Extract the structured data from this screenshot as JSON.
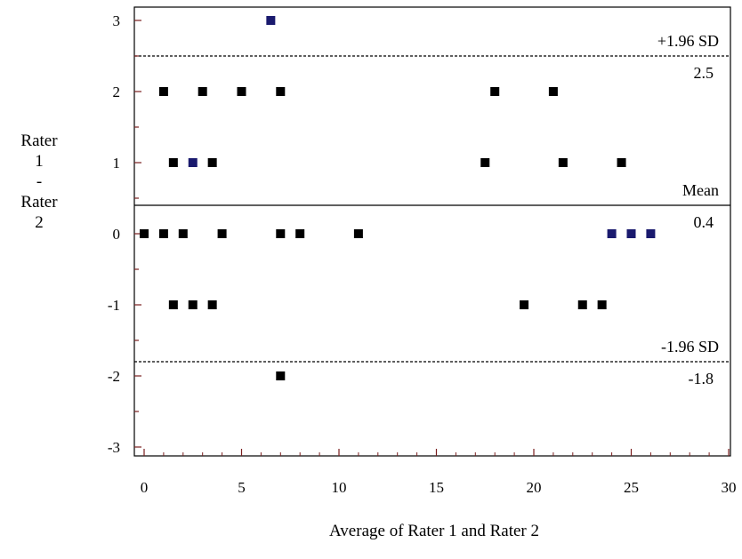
{
  "chart_data": {
    "type": "scatter",
    "title": "",
    "xlabel": "Average of Rater 1 and Rater 2",
    "ylabel_lines": [
      "Rater",
      "1",
      "-",
      "Rater",
      "2"
    ],
    "xlim": [
      0,
      30
    ],
    "ylim": [
      -3,
      3
    ],
    "xticks": [
      0,
      5,
      10,
      15,
      20,
      25,
      30
    ],
    "yticks": [
      -3,
      -2,
      -1,
      0,
      1,
      2,
      3
    ],
    "grid": false,
    "reference_lines": [
      {
        "name": "+1.96 SD",
        "value": 2.5,
        "value_label": "2.5",
        "style": "dashed"
      },
      {
        "name": "Mean",
        "value": 0.4,
        "value_label": "0.4",
        "style": "solid"
      },
      {
        "name": "-1.96 SD",
        "value": -1.8,
        "value_label": "-1.8",
        "style": "dashed"
      }
    ],
    "series": [
      {
        "color": "#000000",
        "points": [
          [
            1,
            2
          ],
          [
            3,
            2
          ],
          [
            5,
            2
          ],
          [
            7,
            2
          ],
          [
            18,
            2
          ],
          [
            21,
            2
          ],
          [
            1.5,
            1
          ],
          [
            3.5,
            1
          ],
          [
            17.5,
            1
          ],
          [
            21.5,
            1
          ],
          [
            24.5,
            1
          ],
          [
            0,
            0
          ],
          [
            1,
            0
          ],
          [
            2,
            0
          ],
          [
            4,
            0
          ],
          [
            7,
            0
          ],
          [
            8,
            0
          ],
          [
            11,
            0
          ],
          [
            1.5,
            -1
          ],
          [
            2.5,
            -1
          ],
          [
            3.5,
            -1
          ],
          [
            19.5,
            -1
          ],
          [
            22.5,
            -1
          ],
          [
            23.5,
            -1
          ],
          [
            7,
            -2
          ]
        ]
      },
      {
        "color": "#1a1a6e",
        "points": [
          [
            6.5,
            3
          ],
          [
            2.5,
            1
          ],
          [
            24,
            0
          ],
          [
            25,
            0
          ],
          [
            26,
            0
          ]
        ]
      }
    ]
  }
}
